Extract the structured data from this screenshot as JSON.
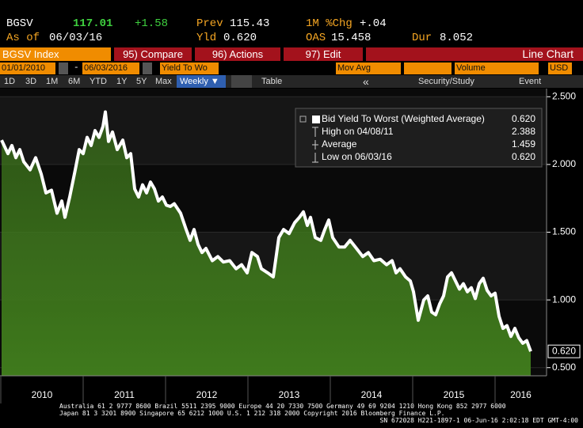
{
  "header": {
    "ticker": "BGSV",
    "price": "117.01",
    "change": "+1.58",
    "prev_label": "Prev",
    "prev": "115.43",
    "chg_label": "1M %Chg",
    "chg": "+.04",
    "asof_label": "As of",
    "asof": "06/03/16",
    "yld_label": "Yld",
    "yld": "0.620",
    "oas_label": "OAS",
    "oas": "15.458",
    "dur_label": "Dur",
    "dur": "8.052"
  },
  "toolbar": {
    "security": "BGSV Index",
    "tabs": [
      "95) Compare",
      "96) Actions",
      "97) Edit"
    ],
    "view": "Line Chart"
  },
  "controls": {
    "start": "01/01/2010",
    "dash": "-",
    "end": "06/03/2016",
    "field": "Yield To Wo",
    "mov_avg": "Mov Avg",
    "volume": "Volume",
    "currency": "USD",
    "ranges": [
      "1D",
      "3D",
      "1M",
      "6M",
      "YTD",
      "1Y",
      "5Y",
      "Max"
    ],
    "frequency": "Weekly ▼",
    "table": "Table",
    "back": "«",
    "study": "Security/Study",
    "event": "Event"
  },
  "chart_data": {
    "type": "area",
    "x": [
      2010.01,
      2010.087,
      2010.135,
      2010.183,
      2010.231,
      2010.279,
      2010.356,
      2010.423,
      2010.49,
      2010.548,
      2010.615,
      2010.683,
      2010.74,
      2010.779,
      2010.837,
      2010.904,
      2010.952,
      2011.0,
      2011.048,
      2011.096,
      2011.144,
      2011.192,
      2011.24,
      2011.269,
      2011.308,
      2011.356,
      2011.413,
      2011.481,
      2011.529,
      2011.577,
      2011.625,
      2011.673,
      2011.721,
      2011.769,
      2011.817,
      2011.865,
      2011.913,
      2011.962,
      2012.01,
      2012.058,
      2012.106,
      2012.183,
      2012.25,
      2012.298,
      2012.346,
      2012.394,
      2012.442,
      2012.49,
      2012.567,
      2012.635,
      2012.702,
      2012.779,
      2012.856,
      2012.923,
      2012.99,
      2013.048,
      2013.115,
      2013.163,
      2013.24,
      2013.308,
      2013.375,
      2013.433,
      2013.5,
      2013.567,
      2013.625,
      2013.673,
      2013.721,
      2013.76,
      2013.817,
      2013.885,
      2013.933,
      2013.981,
      2014.029,
      2014.106,
      2014.173,
      2014.24,
      2014.317,
      2014.394,
      2014.462,
      2014.529,
      2014.606,
      2014.683,
      2014.75,
      2014.798,
      2014.846,
      2014.913,
      2014.971,
      2015.01,
      2015.067,
      2015.135,
      2015.183,
      2015.231,
      2015.279,
      2015.327,
      2015.375,
      2015.423,
      2015.471,
      2015.519,
      2015.567,
      2015.615,
      2015.663,
      2015.712,
      2015.76,
      2015.808,
      2015.856,
      2015.904,
      2015.952,
      2016.0,
      2016.048,
      2016.096,
      2016.144,
      2016.192,
      2016.24,
      2016.288,
      2016.337,
      2016.385,
      2016.433
    ],
    "series": [
      {
        "name": "Bid Yield To Worst (Weighted Average)",
        "color": "#ffffff",
        "fill": "#3f7a1c",
        "last_label": "0.620",
        "values": [
          2.18,
          2.08,
          2.14,
          2.05,
          2.11,
          2.02,
          1.96,
          2.05,
          1.93,
          1.79,
          1.81,
          1.64,
          1.73,
          1.61,
          1.76,
          1.96,
          2.11,
          2.08,
          2.2,
          2.14,
          2.25,
          2.2,
          2.28,
          2.388,
          2.17,
          2.24,
          2.11,
          2.18,
          2.05,
          2.08,
          1.82,
          1.76,
          1.85,
          1.79,
          1.87,
          1.82,
          1.73,
          1.76,
          1.7,
          1.69,
          1.71,
          1.64,
          1.52,
          1.44,
          1.52,
          1.41,
          1.35,
          1.38,
          1.29,
          1.32,
          1.28,
          1.29,
          1.23,
          1.26,
          1.2,
          1.35,
          1.32,
          1.23,
          1.2,
          1.17,
          1.46,
          1.52,
          1.49,
          1.57,
          1.61,
          1.65,
          1.55,
          1.61,
          1.46,
          1.44,
          1.52,
          1.59,
          1.46,
          1.39,
          1.39,
          1.44,
          1.38,
          1.32,
          1.35,
          1.29,
          1.3,
          1.26,
          1.29,
          1.2,
          1.23,
          1.17,
          1.14,
          1.06,
          0.85,
          1.0,
          1.03,
          0.91,
          0.89,
          0.97,
          1.03,
          1.17,
          1.2,
          1.14,
          1.08,
          1.12,
          1.06,
          1.09,
          1.01,
          1.12,
          1.16,
          1.07,
          1.03,
          1.05,
          0.88,
          0.79,
          0.81,
          0.73,
          0.79,
          0.72,
          0.68,
          0.7,
          0.62
        ]
      }
    ],
    "stats": [
      {
        "label": "High on 04/08/11",
        "value": "2.388"
      },
      {
        "label": "Average",
        "value": "1.459"
      },
      {
        "label": "Low on 06/03/16",
        "value": "0.620"
      }
    ],
    "xlim": [
      2010,
      2016.625
    ],
    "xticks": [
      2010,
      2011,
      2012,
      2013,
      2014,
      2015,
      2016
    ],
    "ylim": [
      0.44,
      2.56
    ],
    "yticks": [
      {
        "value": 0.5,
        "label": "0.500"
      },
      {
        "value": 1.0,
        "label": "1.000"
      },
      {
        "value": 1.5,
        "label": "1.500"
      },
      {
        "value": 2.0,
        "label": "2.000"
      },
      {
        "value": 2.5,
        "label": "2.500"
      }
    ],
    "grid": true
  },
  "footer": [
    "Australia 61 2 9777 8600 Brazil 5511 2395 9000 Europe 44 20 7330 7500 Germany 49 69 9204 1210 Hong Kong 852 2977 6000",
    "Japan 81 3 3201 8900         Singapore 65 6212 1000        U.S. 1 212 318 2000         Copyright 2016 Bloomberg Finance L.P.",
    "SN 672028 H221-1897-1 06-Jun-16  2:02:18 EDT  GMT-4:00"
  ]
}
